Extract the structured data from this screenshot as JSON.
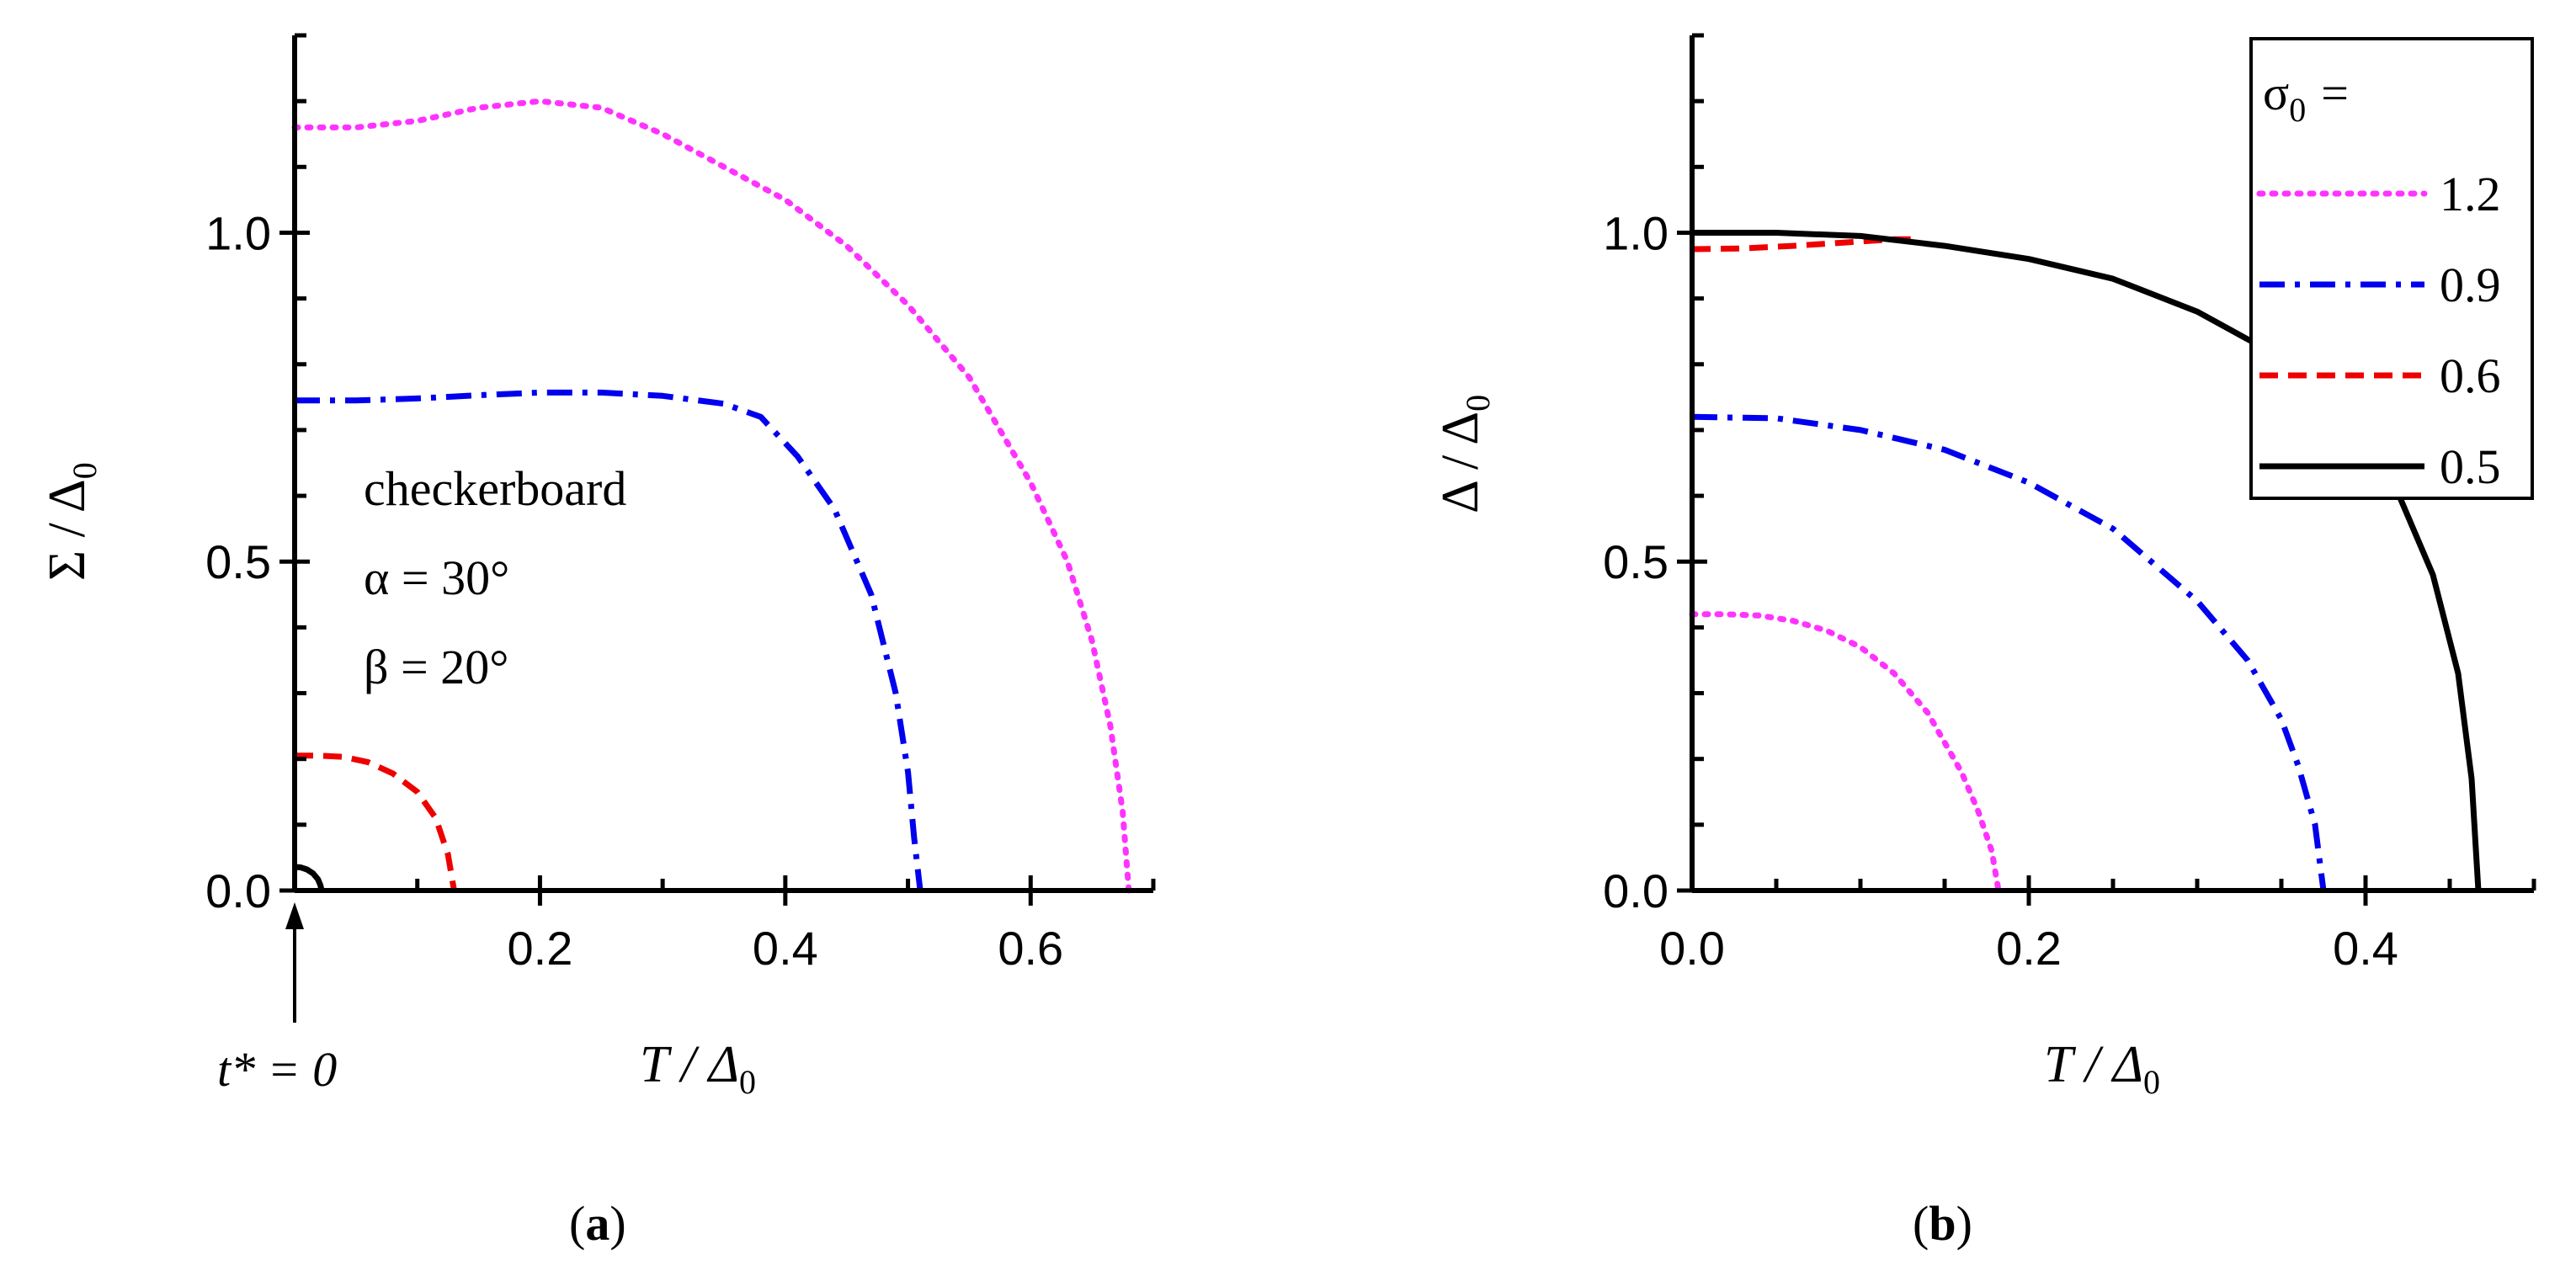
{
  "colors": {
    "pink": "#ff33ff",
    "blue": "#0000ee",
    "red": "#ee0000",
    "black": "#000000"
  },
  "chart_data": [
    {
      "type": "line",
      "panel_label": "a",
      "xlabel": "T / Δ",
      "xlabel_sub": "0",
      "ylabel": "Σ / Δ",
      "ylabel_sub": "0",
      "xlim": [
        0,
        0.7
      ],
      "ylim": [
        0,
        1.3
      ],
      "xticks": [
        0.2,
        0.4,
        0.6
      ],
      "xtick_labels": [
        "0.2",
        "0.4",
        "0.6"
      ],
      "yticks": [
        0.0,
        0.5,
        1.0
      ],
      "ytick_labels": [
        "0.0",
        "0.5",
        "1.0"
      ],
      "annotations": [
        "checkerboard",
        "α = 30°",
        "β = 20°"
      ],
      "arrow_label": "t* = 0",
      "series": [
        {
          "name": "1.2",
          "style": "dotted",
          "color": "#ff33ff",
          "x": [
            0,
            0.05,
            0.1,
            0.15,
            0.2,
            0.25,
            0.3,
            0.35,
            0.4,
            0.45,
            0.5,
            0.55,
            0.6,
            0.63,
            0.65,
            0.665,
            0.675,
            0.68
          ],
          "y": [
            1.16,
            1.16,
            1.17,
            1.19,
            1.2,
            1.19,
            1.15,
            1.1,
            1.05,
            0.98,
            0.89,
            0.78,
            0.62,
            0.5,
            0.38,
            0.25,
            0.12,
            0.0
          ]
        },
        {
          "name": "0.9",
          "style": "dashdot",
          "color": "#0000ee",
          "x": [
            0,
            0.05,
            0.1,
            0.15,
            0.2,
            0.25,
            0.3,
            0.35,
            0.38,
            0.41,
            0.44,
            0.47,
            0.49,
            0.5,
            0.505,
            0.51
          ],
          "y": [
            0.745,
            0.745,
            0.748,
            0.753,
            0.757,
            0.757,
            0.752,
            0.74,
            0.72,
            0.66,
            0.58,
            0.45,
            0.3,
            0.18,
            0.08,
            0.0
          ]
        },
        {
          "name": "0.6",
          "style": "dashed",
          "color": "#ee0000",
          "x": [
            0,
            0.02,
            0.04,
            0.06,
            0.08,
            0.1,
            0.115,
            0.125,
            0.13
          ],
          "y": [
            0.205,
            0.205,
            0.203,
            0.195,
            0.178,
            0.15,
            0.11,
            0.055,
            0.0
          ]
        },
        {
          "name": "0.5",
          "style": "solid",
          "color": "#000000",
          "x": [
            0,
            0.005,
            0.01,
            0.015,
            0.019,
            0.021,
            0.022
          ],
          "y": [
            0.036,
            0.035,
            0.032,
            0.026,
            0.017,
            0.008,
            0.0
          ]
        }
      ]
    },
    {
      "type": "line",
      "panel_label": "b",
      "xlabel": "T / Δ",
      "xlabel_sub": "0",
      "ylabel": "Δ / Δ",
      "ylabel_sub": "0",
      "xlim": [
        0,
        0.5
      ],
      "ylim": [
        0,
        1.3
      ],
      "xticks": [
        0.0,
        0.2,
        0.4
      ],
      "xtick_labels": [
        "0.0",
        "0.2",
        "0.4"
      ],
      "yticks": [
        0.0,
        0.5,
        1.0
      ],
      "ytick_labels": [
        "0.0",
        "0.5",
        "1.0"
      ],
      "legend_title": "σ",
      "legend_title_sub": "0",
      "legend_title_suffix": "=",
      "legend_position": "top-right",
      "series": [
        {
          "name": "1.2",
          "style": "dotted",
          "color": "#ff33ff",
          "x": [
            0,
            0.02,
            0.04,
            0.06,
            0.08,
            0.1,
            0.12,
            0.14,
            0.16,
            0.17,
            0.178,
            0.182
          ],
          "y": [
            0.42,
            0.42,
            0.418,
            0.41,
            0.395,
            0.37,
            0.33,
            0.27,
            0.18,
            0.12,
            0.06,
            0.0
          ]
        },
        {
          "name": "0.9",
          "style": "dashdot",
          "color": "#0000ee",
          "x": [
            0,
            0.05,
            0.1,
            0.15,
            0.2,
            0.25,
            0.3,
            0.33,
            0.35,
            0.36,
            0.37,
            0.375
          ],
          "y": [
            0.72,
            0.718,
            0.7,
            0.67,
            0.62,
            0.55,
            0.44,
            0.35,
            0.26,
            0.19,
            0.1,
            0.0
          ]
        },
        {
          "name": "0.6",
          "style": "dashed",
          "color": "#ee0000",
          "x": [
            0,
            0.03,
            0.06,
            0.09,
            0.12,
            0.13
          ],
          "y": [
            0.975,
            0.976,
            0.98,
            0.985,
            0.99,
            0.99
          ]
        },
        {
          "name": "0.5",
          "style": "solid",
          "color": "#000000",
          "x": [
            0,
            0.05,
            0.1,
            0.15,
            0.2,
            0.25,
            0.3,
            0.35,
            0.4,
            0.42,
            0.44,
            0.455,
            0.463,
            0.467
          ],
          "y": [
            1.0,
            1.0,
            0.995,
            0.98,
            0.96,
            0.93,
            0.88,
            0.81,
            0.68,
            0.6,
            0.48,
            0.33,
            0.17,
            0.0
          ]
        }
      ]
    }
  ]
}
